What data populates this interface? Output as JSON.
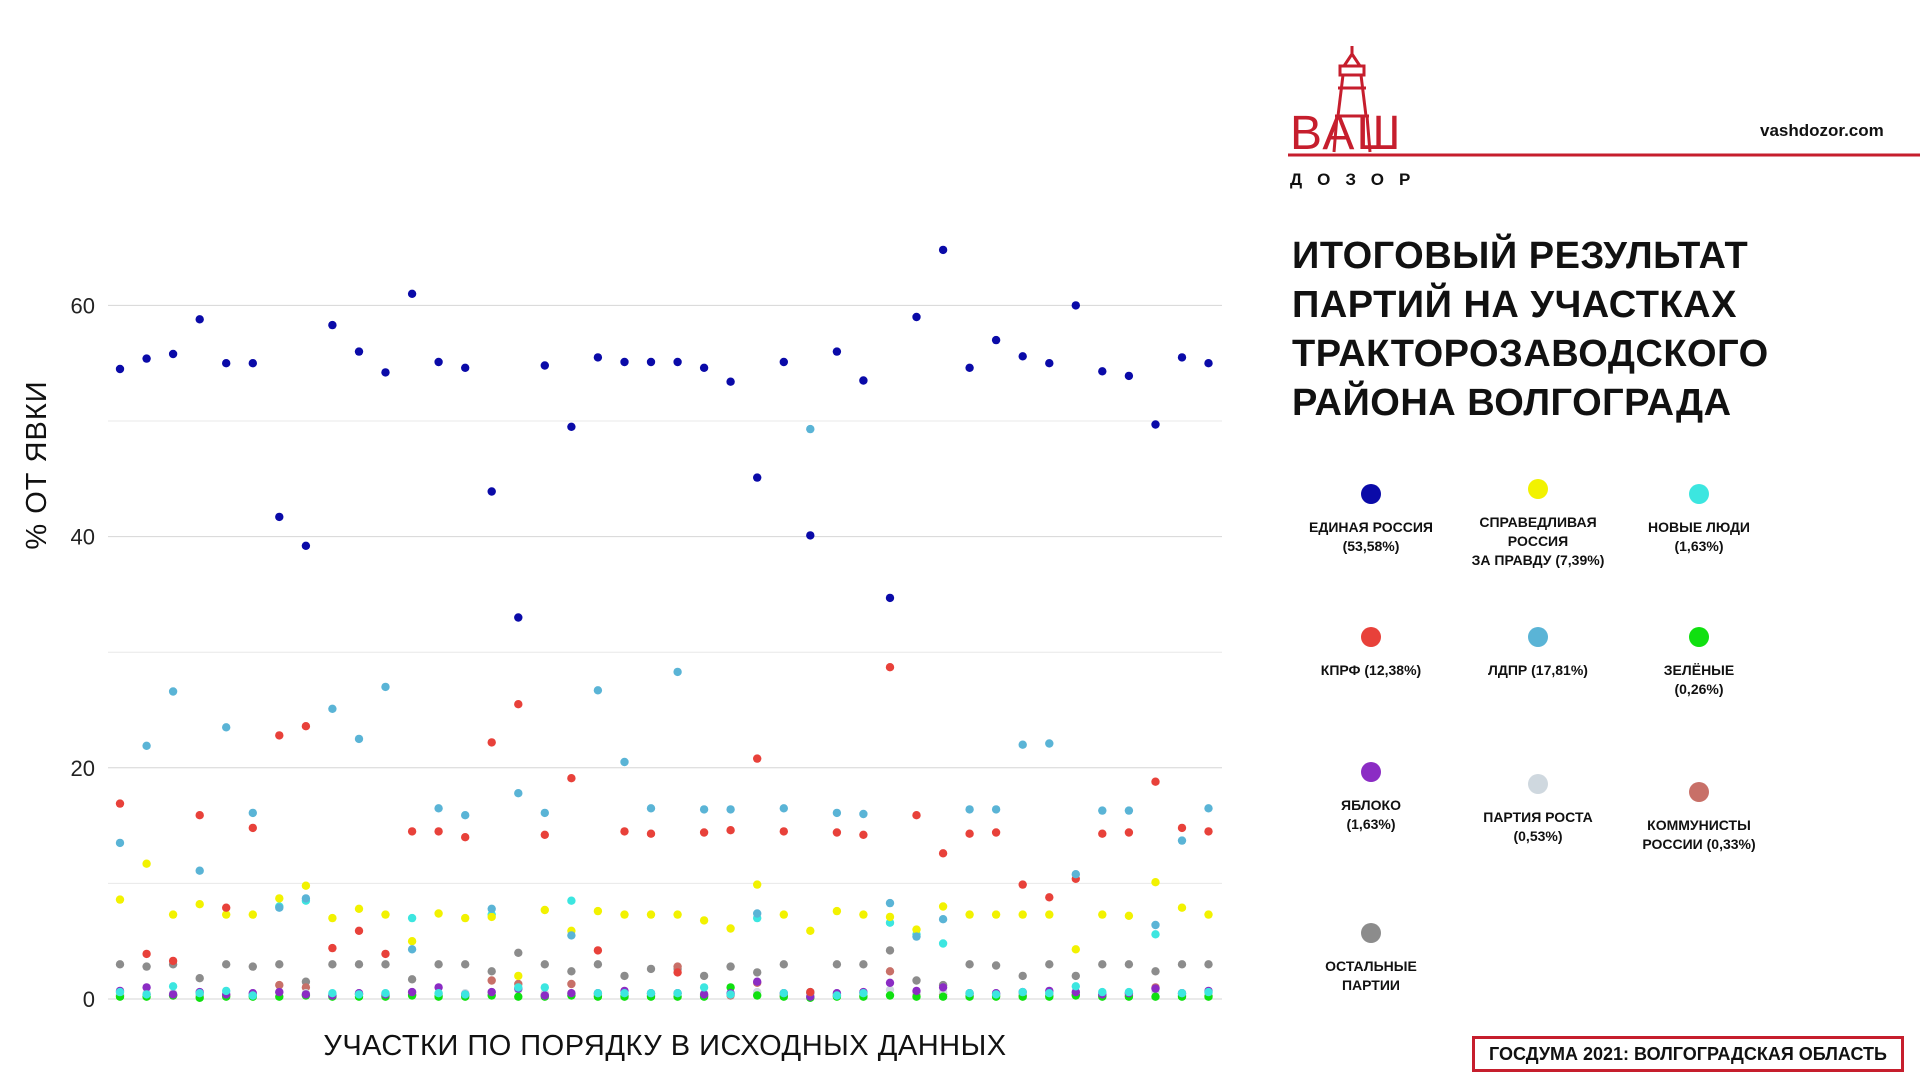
{
  "header": {
    "logo_main": "ВАШ",
    "logo_sub": "ДОЗОР",
    "site": "vashdozor.com"
  },
  "title": "ИТОГОВЫЙ РЕЗУЛЬТАТ ПАРТИЙ НА УЧАСТКАХ ТРАКТОРОЗАВОДСКОГО РАЙОНА ВОЛГОГРАДА",
  "footer": "ГОСДУМА 2021: ВОЛГОГРАДСКАЯ ОБЛАСТЬ",
  "colors": {
    "brand": "#c61e2d",
    "ur": "#0a0aa8",
    "sr": "#f2f200",
    "nl": "#3ce6e0",
    "kprf": "#e8413a",
    "ldpr": "#5ab4d6",
    "green": "#10e010",
    "yabloko": "#8b2cc4",
    "rost": "#cfd8df",
    "kr": "#c87068",
    "other": "#8c8c8c"
  },
  "legend": [
    {
      "key": "ur",
      "line1": "ЕДИНАЯ РОССИЯ",
      "line2": "(53,58%)"
    },
    {
      "key": "sr",
      "line1": "СПРАВЕДЛИВАЯ РОССИЯ",
      "line2": "ЗА ПРАВДУ (7,39%)"
    },
    {
      "key": "nl",
      "line1": "НОВЫЕ ЛЮДИ",
      "line2": "(1,63%)"
    },
    {
      "key": "kprf",
      "line1": "КПРФ (12,38%)",
      "line2": ""
    },
    {
      "key": "ldpr",
      "line1": "ЛДПР (17,81%)",
      "line2": ""
    },
    {
      "key": "green",
      "line1": "ЗЕЛЁНЫЕ",
      "line2": "(0,26%)"
    },
    {
      "key": "yabloko",
      "line1": "ЯБЛОКО",
      "line2": "(1,63%)"
    },
    {
      "key": "rost",
      "line1": "ПАРТИЯ РОСТА",
      "line2": "(0,53%)"
    },
    {
      "key": "kr",
      "line1": "КОММУНИСТЫ",
      "line2": "РОССИИ (0,33%)"
    },
    {
      "key": "other",
      "line1": "ОСТАЛЬНЫЕ",
      "line2": "ПАРТИИ"
    }
  ],
  "chart_data": {
    "type": "scatter",
    "xlabel": "УЧАСТКИ ПО ПОРЯДКУ В ИСХОДНЫХ ДАННЫХ",
    "ylabel": "% ОТ ЯВКИ",
    "ylim": [
      0,
      68
    ],
    "yticks": [
      0,
      20,
      40,
      60
    ],
    "grid": true,
    "stations": 42,
    "series": [
      {
        "key": "ur",
        "name": "ЕДИНАЯ РОССИЯ",
        "values": [
          54.5,
          55.4,
          55.8,
          58.8,
          55.0,
          55.0,
          41.7,
          39.2,
          58.3,
          56.0,
          54.2,
          61.0,
          55.1,
          54.6,
          43.9,
          33.0,
          54.8,
          49.5,
          55.5,
          55.1,
          55.1,
          55.1,
          54.6,
          53.4,
          45.1,
          55.1,
          40.1,
          56.0,
          53.5,
          34.7,
          59.0,
          64.8,
          54.6,
          57.0,
          55.6,
          55.0,
          60.0,
          54.3,
          53.9,
          49.7,
          55.5,
          55.0
        ]
      },
      {
        "key": "ldpr",
        "name": "ЛДПР",
        "values": [
          13.5,
          21.9,
          26.6,
          11.1,
          23.5,
          16.1,
          7.9,
          8.7,
          25.1,
          22.5,
          27.0,
          4.3,
          16.5,
          15.9,
          7.8,
          17.8,
          16.1,
          5.5,
          26.7,
          20.5,
          16.5,
          28.3,
          16.4,
          16.4,
          7.4,
          16.5,
          49.3,
          16.1,
          16.0,
          8.3,
          5.4,
          6.9,
          16.4,
          16.4,
          22.0,
          22.1,
          10.8,
          16.3,
          16.3,
          6.4,
          13.7,
          16.5
        ]
      },
      {
        "key": "kprf",
        "name": "КПРФ",
        "values": [
          16.9,
          3.9,
          3.3,
          15.9,
          7.9,
          14.8,
          22.8,
          23.6,
          4.4,
          5.9,
          3.9,
          14.5,
          14.5,
          14.0,
          22.2,
          25.5,
          14.2,
          19.1,
          4.2,
          14.5,
          14.3,
          2.3,
          14.4,
          14.6,
          20.8,
          14.5,
          0.6,
          14.4,
          14.2,
          28.7,
          15.9,
          12.6,
          14.3,
          14.4,
          9.9,
          8.8,
          10.4,
          14.3,
          14.4,
          18.8,
          14.8,
          14.5
        ]
      },
      {
        "key": "sr",
        "name": "СПРАВЕДЛИВАЯ РОССИЯ",
        "values": [
          8.6,
          11.7,
          7.3,
          8.2,
          7.3,
          7.3,
          8.7,
          9.8,
          7.0,
          7.8,
          7.3,
          5.0,
          7.4,
          7.0,
          7.1,
          2.0,
          7.7,
          5.9,
          7.6,
          7.3,
          7.3,
          7.3,
          6.8,
          6.1,
          9.9,
          7.3,
          5.9,
          7.6,
          7.3,
          7.1,
          6.0,
          8.0,
          7.3,
          7.3,
          7.3,
          7.3,
          4.3,
          7.3,
          7.2,
          10.1,
          7.9,
          7.3
        ]
      },
      {
        "key": "nl",
        "name": "НОВЫЕ ЛЮДИ",
        "values": [
          0.6,
          0.4,
          1.1,
          0.5,
          0.7,
          0.3,
          8.0,
          8.5,
          0.5,
          0.4,
          0.5,
          7.0,
          0.5,
          0.4,
          7.3,
          1.0,
          1.0,
          8.5,
          0.5,
          0.5,
          0.5,
          0.5,
          1.0,
          0.4,
          7.0,
          0.5,
          0.6,
          0.3,
          0.5,
          6.6,
          5.6,
          4.8,
          0.5,
          0.4,
          0.6,
          0.5,
          1.1,
          0.6,
          0.6,
          5.6,
          0.5,
          0.6
        ]
      },
      {
        "key": "yabloko",
        "name": "ЯБЛОКО",
        "values": [
          0.7,
          1.0,
          0.4,
          0.6,
          0.4,
          0.5,
          0.6,
          0.4,
          0.3,
          0.5,
          0.4,
          0.6,
          1.0,
          0.4,
          0.6,
          0.9,
          0.3,
          0.5,
          0.5,
          0.7,
          0.5,
          0.5,
          0.4,
          0.5,
          1.5,
          0.5,
          0.2,
          0.5,
          0.6,
          1.4,
          0.7,
          1.0,
          0.5,
          0.5,
          0.6,
          0.7,
          0.6,
          0.4,
          0.5,
          0.9,
          0.5,
          0.7
        ]
      },
      {
        "key": "green",
        "name": "ЗЕЛЁНЫЕ",
        "values": [
          0.2,
          0.2,
          0.3,
          0.1,
          0.2,
          0.2,
          0.2,
          0.3,
          0.2,
          0.2,
          0.2,
          0.3,
          0.2,
          0.2,
          0.3,
          0.2,
          0.2,
          0.3,
          0.2,
          0.2,
          0.2,
          0.2,
          0.2,
          1.0,
          0.3,
          0.2,
          0.1,
          0.2,
          0.2,
          0.3,
          0.2,
          0.2,
          0.2,
          0.2,
          0.2,
          0.2,
          0.3,
          0.2,
          0.2,
          0.2,
          0.2,
          0.2
        ]
      },
      {
        "key": "rost",
        "name": "ПАРТИЯ РОСТА",
        "values": [
          0.4,
          0.5,
          0.5,
          0.4,
          0.5,
          0.5,
          0.6,
          0.5,
          0.4,
          0.5,
          0.5,
          0.6,
          0.5,
          0.5,
          0.6,
          0.8,
          0.5,
          0.5,
          0.4,
          0.5,
          0.5,
          0.5,
          0.5,
          0.4,
          0.6,
          0.5,
          0.3,
          0.5,
          0.5,
          0.8,
          0.5,
          0.6,
          0.5,
          0.5,
          0.5,
          0.5,
          0.6,
          0.5,
          0.5,
          0.6,
          0.5,
          0.5
        ]
      },
      {
        "key": "kr",
        "name": "КОММУНИСТЫ РОССИИ",
        "values": [
          0.3,
          0.4,
          0.3,
          0.3,
          0.3,
          0.3,
          1.2,
          1.0,
          0.3,
          0.4,
          0.3,
          0.4,
          0.3,
          0.3,
          1.6,
          1.3,
          0.3,
          1.3,
          0.3,
          0.3,
          0.3,
          2.8,
          0.3,
          0.3,
          1.4,
          0.3,
          0.2,
          0.3,
          0.3,
          2.4,
          0.4,
          0.4,
          0.3,
          0.3,
          0.3,
          0.3,
          0.4,
          0.3,
          0.3,
          1.0,
          0.3,
          0.3
        ]
      },
      {
        "key": "other",
        "name": "ОСТАЛЬНЫЕ ПАРТИИ",
        "values": [
          3.0,
          2.8,
          3.0,
          1.8,
          3.0,
          2.8,
          3.0,
          1.5,
          3.0,
          3.0,
          3.0,
          1.7,
          3.0,
          3.0,
          2.4,
          4.0,
          3.0,
          2.4,
          3.0,
          2.0,
          2.6,
          2.6,
          2.0,
          2.8,
          2.3,
          3.0,
          0.5,
          3.0,
          3.0,
          4.2,
          1.6,
          1.2,
          3.0,
          2.9,
          2.0,
          3.0,
          2.0,
          3.0,
          3.0,
          2.4,
          3.0,
          3.0
        ]
      }
    ]
  }
}
